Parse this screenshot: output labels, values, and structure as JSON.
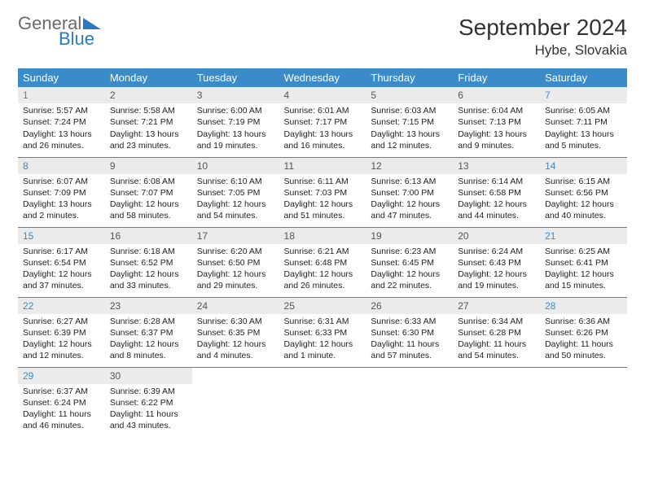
{
  "brand": {
    "general": "General",
    "blue": "Blue"
  },
  "title": "September 2024",
  "location": "Hybe, Slovakia",
  "colors": {
    "header_bg": "#3b8bc8",
    "header_text": "#ffffff",
    "daynum_bg": "#ebebeb",
    "daynum_text": "#555555",
    "weekend_text": "#3b8bc8",
    "border": "#3b8bc8",
    "body_text": "#222222",
    "logo_gray": "#6a6a6a",
    "logo_blue": "#2d78bd"
  },
  "dayHeaders": [
    "Sunday",
    "Monday",
    "Tuesday",
    "Wednesday",
    "Thursday",
    "Friday",
    "Saturday"
  ],
  "weeks": [
    [
      {
        "n": "1",
        "w": true,
        "sr": "Sunrise: 5:57 AM",
        "ss": "Sunset: 7:24 PM",
        "dl": "Daylight: 13 hours and 26 minutes."
      },
      {
        "n": "2",
        "sr": "Sunrise: 5:58 AM",
        "ss": "Sunset: 7:21 PM",
        "dl": "Daylight: 13 hours and 23 minutes."
      },
      {
        "n": "3",
        "sr": "Sunrise: 6:00 AM",
        "ss": "Sunset: 7:19 PM",
        "dl": "Daylight: 13 hours and 19 minutes."
      },
      {
        "n": "4",
        "sr": "Sunrise: 6:01 AM",
        "ss": "Sunset: 7:17 PM",
        "dl": "Daylight: 13 hours and 16 minutes."
      },
      {
        "n": "5",
        "sr": "Sunrise: 6:03 AM",
        "ss": "Sunset: 7:15 PM",
        "dl": "Daylight: 13 hours and 12 minutes."
      },
      {
        "n": "6",
        "sr": "Sunrise: 6:04 AM",
        "ss": "Sunset: 7:13 PM",
        "dl": "Daylight: 13 hours and 9 minutes."
      },
      {
        "n": "7",
        "w": true,
        "sr": "Sunrise: 6:05 AM",
        "ss": "Sunset: 7:11 PM",
        "dl": "Daylight: 13 hours and 5 minutes."
      }
    ],
    [
      {
        "n": "8",
        "w": true,
        "sr": "Sunrise: 6:07 AM",
        "ss": "Sunset: 7:09 PM",
        "dl": "Daylight: 13 hours and 2 minutes."
      },
      {
        "n": "9",
        "sr": "Sunrise: 6:08 AM",
        "ss": "Sunset: 7:07 PM",
        "dl": "Daylight: 12 hours and 58 minutes."
      },
      {
        "n": "10",
        "sr": "Sunrise: 6:10 AM",
        "ss": "Sunset: 7:05 PM",
        "dl": "Daylight: 12 hours and 54 minutes."
      },
      {
        "n": "11",
        "sr": "Sunrise: 6:11 AM",
        "ss": "Sunset: 7:03 PM",
        "dl": "Daylight: 12 hours and 51 minutes."
      },
      {
        "n": "12",
        "sr": "Sunrise: 6:13 AM",
        "ss": "Sunset: 7:00 PM",
        "dl": "Daylight: 12 hours and 47 minutes."
      },
      {
        "n": "13",
        "sr": "Sunrise: 6:14 AM",
        "ss": "Sunset: 6:58 PM",
        "dl": "Daylight: 12 hours and 44 minutes."
      },
      {
        "n": "14",
        "w": true,
        "sr": "Sunrise: 6:15 AM",
        "ss": "Sunset: 6:56 PM",
        "dl": "Daylight: 12 hours and 40 minutes."
      }
    ],
    [
      {
        "n": "15",
        "w": true,
        "sr": "Sunrise: 6:17 AM",
        "ss": "Sunset: 6:54 PM",
        "dl": "Daylight: 12 hours and 37 minutes."
      },
      {
        "n": "16",
        "sr": "Sunrise: 6:18 AM",
        "ss": "Sunset: 6:52 PM",
        "dl": "Daylight: 12 hours and 33 minutes."
      },
      {
        "n": "17",
        "sr": "Sunrise: 6:20 AM",
        "ss": "Sunset: 6:50 PM",
        "dl": "Daylight: 12 hours and 29 minutes."
      },
      {
        "n": "18",
        "sr": "Sunrise: 6:21 AM",
        "ss": "Sunset: 6:48 PM",
        "dl": "Daylight: 12 hours and 26 minutes."
      },
      {
        "n": "19",
        "sr": "Sunrise: 6:23 AM",
        "ss": "Sunset: 6:45 PM",
        "dl": "Daylight: 12 hours and 22 minutes."
      },
      {
        "n": "20",
        "sr": "Sunrise: 6:24 AM",
        "ss": "Sunset: 6:43 PM",
        "dl": "Daylight: 12 hours and 19 minutes."
      },
      {
        "n": "21",
        "w": true,
        "sr": "Sunrise: 6:25 AM",
        "ss": "Sunset: 6:41 PM",
        "dl": "Daylight: 12 hours and 15 minutes."
      }
    ],
    [
      {
        "n": "22",
        "w": true,
        "sr": "Sunrise: 6:27 AM",
        "ss": "Sunset: 6:39 PM",
        "dl": "Daylight: 12 hours and 12 minutes."
      },
      {
        "n": "23",
        "sr": "Sunrise: 6:28 AM",
        "ss": "Sunset: 6:37 PM",
        "dl": "Daylight: 12 hours and 8 minutes."
      },
      {
        "n": "24",
        "sr": "Sunrise: 6:30 AM",
        "ss": "Sunset: 6:35 PM",
        "dl": "Daylight: 12 hours and 4 minutes."
      },
      {
        "n": "25",
        "sr": "Sunrise: 6:31 AM",
        "ss": "Sunset: 6:33 PM",
        "dl": "Daylight: 12 hours and 1 minute."
      },
      {
        "n": "26",
        "sr": "Sunrise: 6:33 AM",
        "ss": "Sunset: 6:30 PM",
        "dl": "Daylight: 11 hours and 57 minutes."
      },
      {
        "n": "27",
        "sr": "Sunrise: 6:34 AM",
        "ss": "Sunset: 6:28 PM",
        "dl": "Daylight: 11 hours and 54 minutes."
      },
      {
        "n": "28",
        "w": true,
        "sr": "Sunrise: 6:36 AM",
        "ss": "Sunset: 6:26 PM",
        "dl": "Daylight: 11 hours and 50 minutes."
      }
    ],
    [
      {
        "n": "29",
        "w": true,
        "sr": "Sunrise: 6:37 AM",
        "ss": "Sunset: 6:24 PM",
        "dl": "Daylight: 11 hours and 46 minutes."
      },
      {
        "n": "30",
        "sr": "Sunrise: 6:39 AM",
        "ss": "Sunset: 6:22 PM",
        "dl": "Daylight: 11 hours and 43 minutes."
      },
      null,
      null,
      null,
      null,
      null
    ]
  ]
}
